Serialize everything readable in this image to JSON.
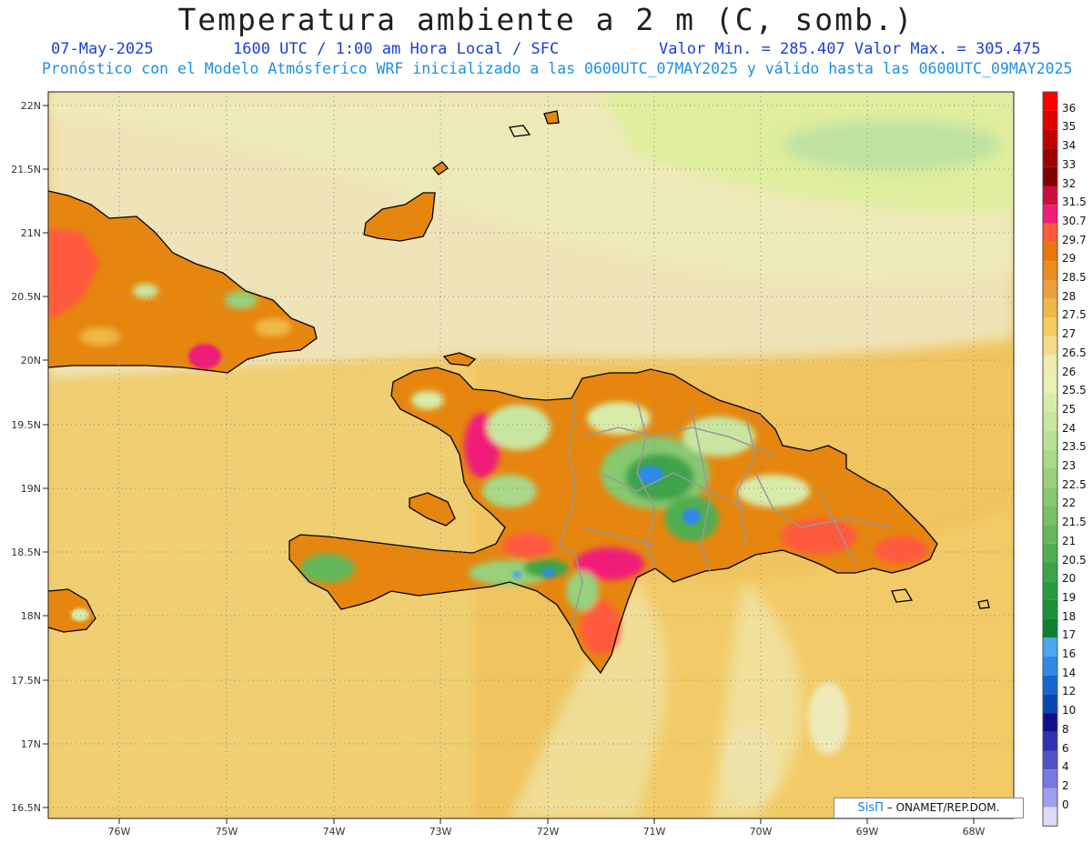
{
  "header": {
    "title": "Temperatura ambiente a 2 m (C, somb.)",
    "date": "07-May-2025",
    "time": "1600 UTC / 1:00 am Hora Local / SFC",
    "minmax": "Valor Min. = 285.407  Valor Max. = 305.475",
    "forecast": "Pronóstico con el Modelo Atmósferico WRF inicializado a las 0600UTC_07MAY2025 y válido hasta las  0600UTC_09MAY2025"
  },
  "axes": {
    "lon_labels": [
      "76W",
      "75W",
      "74W",
      "73W",
      "72W",
      "71W",
      "70W",
      "69W",
      "68W"
    ],
    "lat_labels": [
      "22N",
      "21.5N",
      "21N",
      "20.5N",
      "20N",
      "19.5N",
      "19N",
      "18.5N",
      "18N",
      "17.5N",
      "17N",
      "16.5N"
    ]
  },
  "colorbar": {
    "labels": [
      "36",
      "35",
      "34",
      "33",
      "32",
      "31.5",
      "30.7",
      "29.7",
      "29",
      "28.5",
      "28",
      "27.5",
      "27",
      "26.5",
      "26",
      "25.5",
      "25",
      "24",
      "23.5",
      "23",
      "22.5",
      "22",
      "21.5",
      "21",
      "20.5",
      "20",
      "19",
      "18",
      "17",
      "16",
      "14",
      "12",
      "10",
      "8",
      "6",
      "4",
      "2",
      "0"
    ],
    "colors": [
      "#ff0000",
      "#e00000",
      "#c00000",
      "#a00000",
      "#800000",
      "#c8103c",
      "#f01e78",
      "#ff5a3c",
      "#e8780a",
      "#ec8c1e",
      "#eca03c",
      "#f0b846",
      "#f4cc60",
      "#f4dc8c",
      "#f0eab4",
      "#e8f0b4",
      "#d8ecaa",
      "#c8e6a0",
      "#b8e094",
      "#a8d888",
      "#98d07c",
      "#88c870",
      "#78c064",
      "#64b85a",
      "#50ae50",
      "#3ca448",
      "#289a40",
      "#1a9038",
      "#0e8032",
      "#4ca6f0",
      "#2e8ae8",
      "#1466d2",
      "#0a46b4",
      "#10108c",
      "#3030b4",
      "#5050c8",
      "#7878e0",
      "#a0a0f0"
    ],
    "bottom_swatch": "#dcdcf8"
  },
  "credit": {
    "brand": "SisΠ",
    "org": "– ONAMET/REP.DOM."
  }
}
